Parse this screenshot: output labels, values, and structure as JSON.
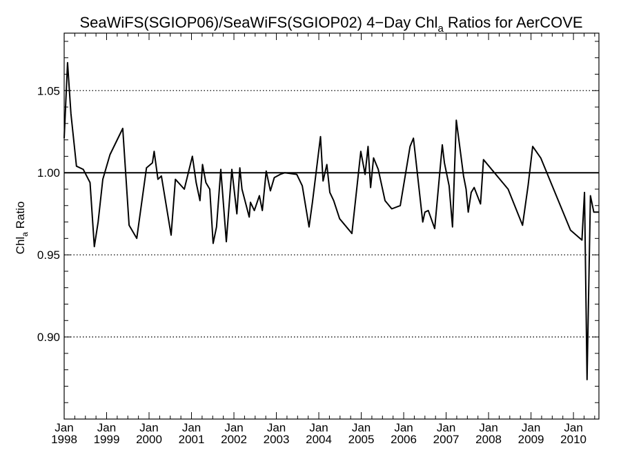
{
  "chart_data": {
    "type": "line",
    "title": {
      "prefix": "SeaWiFS(SGIOP06)/SeaWiFS(SGIOP02) 4−Day Chl",
      "subscript": "a",
      "suffix": " Ratios for AerCOVE"
    },
    "ylabel": {
      "main": "Chl",
      "subscript": "a",
      "suffix": " Ratio"
    },
    "xlabel": "",
    "xlim": [
      1998.0,
      2010.6
    ],
    "ylim": [
      0.85,
      1.085
    ],
    "yticks": [
      {
        "value": 0.9,
        "label": "0.90"
      },
      {
        "value": 0.95,
        "label": "0.95"
      },
      {
        "value": 1.0,
        "label": "1.00"
      },
      {
        "value": 1.05,
        "label": "1.05"
      }
    ],
    "xticks": [
      {
        "value": 1998,
        "month": "Jan",
        "year": "1998"
      },
      {
        "value": 1999,
        "month": "Jan",
        "year": "1999"
      },
      {
        "value": 2000,
        "month": "Jan",
        "year": "2000"
      },
      {
        "value": 2001,
        "month": "Jan",
        "year": "2001"
      },
      {
        "value": 2002,
        "month": "Jan",
        "year": "2002"
      },
      {
        "value": 2003,
        "month": "Jan",
        "year": "2003"
      },
      {
        "value": 2004,
        "month": "Jan",
        "year": "2004"
      },
      {
        "value": 2005,
        "month": "Jan",
        "year": "2005"
      },
      {
        "value": 2006,
        "month": "Jan",
        "year": "2006"
      },
      {
        "value": 2007,
        "month": "Jan",
        "year": "2007"
      },
      {
        "value": 2008,
        "month": "Jan",
        "year": "2008"
      },
      {
        "value": 2009,
        "month": "Jan",
        "year": "2009"
      },
      {
        "value": 2010,
        "month": "Jan",
        "year": "2010"
      }
    ],
    "reference_line": 1.0,
    "dotted_gridlines": [
      0.9,
      0.95,
      1.05
    ],
    "series": [
      {
        "x": [
          1998.0,
          1998.08,
          1998.16,
          1998.29,
          1998.45,
          1998.61,
          1998.71,
          1998.8,
          1998.91,
          1999.08,
          1999.38,
          1999.53,
          1999.71,
          1999.94,
          2000.08,
          2000.12,
          2000.21,
          2000.29,
          2000.52,
          2000.62,
          2000.83,
          2001.02,
          2001.11,
          2001.2,
          2001.26,
          2001.34,
          2001.43,
          2001.51,
          2001.59,
          2001.69,
          2001.82,
          2001.95,
          2002.07,
          2002.14,
          2002.19,
          2002.36,
          2002.39,
          2002.48,
          2002.6,
          2002.67,
          2002.76,
          2002.86,
          2002.95,
          2003.09,
          2003.2,
          2003.48,
          2003.61,
          2003.77,
          2003.85,
          2004.04,
          2004.1,
          2004.19,
          2004.26,
          2004.35,
          2004.49,
          2004.78,
          2004.99,
          2005.09,
          2005.16,
          2005.22,
          2005.29,
          2005.4,
          2005.56,
          2005.72,
          2005.92,
          2006.15,
          2006.23,
          2006.45,
          2006.5,
          2006.58,
          2006.73,
          2006.91,
          2006.96,
          2007.07,
          2007.15,
          2007.24,
          2007.34,
          2007.41,
          2007.47,
          2007.52,
          2007.59,
          2007.66,
          2007.81,
          2007.88,
          2008.46,
          2008.8,
          2008.93,
          2009.04,
          2009.23,
          2009.93,
          2010.2,
          2010.26,
          2010.32,
          2010.4,
          2010.48,
          2010.6
        ],
        "y": [
          1.021,
          1.067,
          1.036,
          1.004,
          1.002,
          0.994,
          0.955,
          0.97,
          0.996,
          1.011,
          1.027,
          0.968,
          0.96,
          1.003,
          1.006,
          1.013,
          0.996,
          0.998,
          0.962,
          0.996,
          0.99,
          1.01,
          0.994,
          0.983,
          1.005,
          0.994,
          0.99,
          0.957,
          0.967,
          1.002,
          0.958,
          1.002,
          0.975,
          1.003,
          0.99,
          0.973,
          0.982,
          0.977,
          0.986,
          0.977,
          1.001,
          0.989,
          0.997,
          0.999,
          1.0,
          0.999,
          0.992,
          0.967,
          0.982,
          1.022,
          0.995,
          1.005,
          0.988,
          0.983,
          0.972,
          0.963,
          1.013,
          0.999,
          1.016,
          0.991,
          1.009,
          1.002,
          0.983,
          0.978,
          0.98,
          1.016,
          1.021,
          0.97,
          0.976,
          0.977,
          0.966,
          1.017,
          1.006,
          0.992,
          0.967,
          1.032,
          1.012,
          0.998,
          0.99,
          0.976,
          0.988,
          0.991,
          0.981,
          1.008,
          0.99,
          0.968,
          0.992,
          1.016,
          1.009,
          0.965,
          0.959,
          0.988,
          0.874,
          0.986,
          0.976,
          0.976
        ]
      }
    ]
  }
}
